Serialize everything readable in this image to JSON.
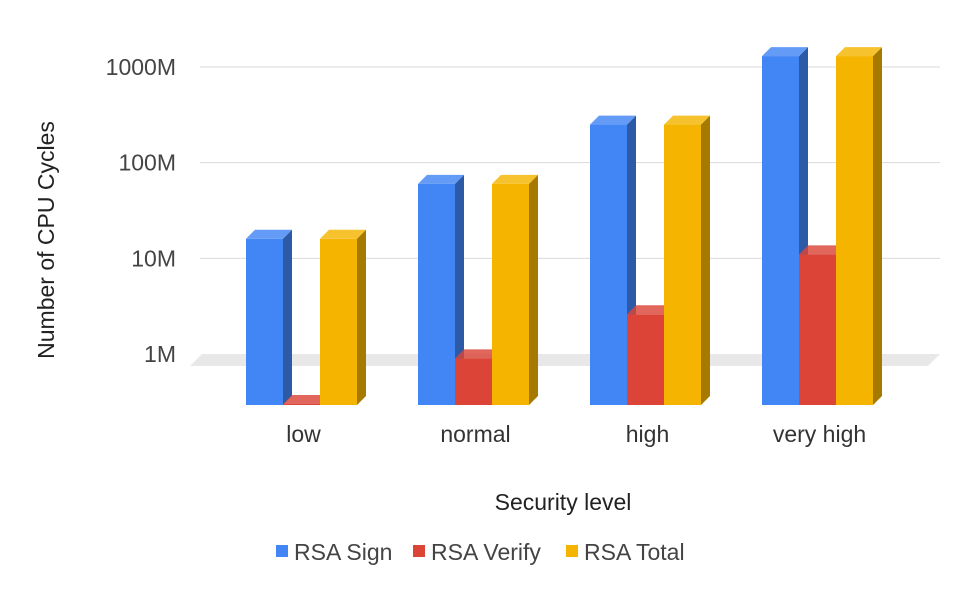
{
  "chart_data": {
    "type": "bar",
    "variant": "3d-grouped",
    "title": "",
    "xlabel": "Security level",
    "ylabel": "Number of CPU Cycles",
    "yscale": "log",
    "ylim": [
      0.3,
      1000
    ],
    "unit_suffix": "M",
    "yticks": [
      {
        "value": 1,
        "label": "1M"
      },
      {
        "value": 10,
        "label": "10M"
      },
      {
        "value": 100,
        "label": "100M"
      },
      {
        "value": 1000,
        "label": "1000M"
      }
    ],
    "categories": [
      "low",
      "normal",
      "high",
      "very high"
    ],
    "series": [
      {
        "name": "RSA Sign",
        "color": "#4285f4",
        "values": [
          16,
          60,
          250,
          1300
        ]
      },
      {
        "name": "RSA Verify",
        "color": "#db4437",
        "values": [
          0.3,
          0.9,
          2.6,
          11
        ]
      },
      {
        "name": "RSA Total",
        "color": "#f4b400",
        "values": [
          16,
          60,
          250,
          1300
        ]
      }
    ],
    "grid": true,
    "legend": "bottom"
  }
}
